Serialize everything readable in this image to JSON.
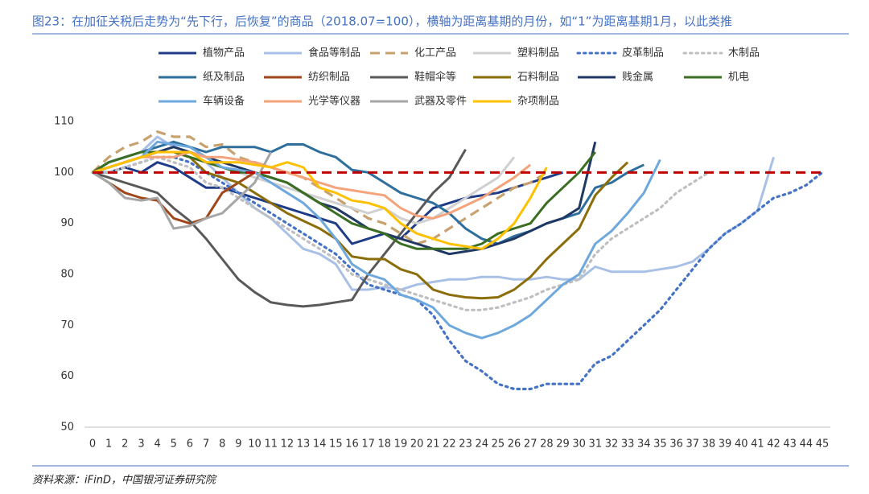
{
  "chart_data": {
    "type": "line",
    "title": "图23：在加征关税后走势为“先下行，后恢复”的商品（2018.07=100），横轴为距离基期的月份，如“1”为距离基期1月，以此类推",
    "source": "资料来源：iFinD，中国银河证券研究院",
    "x": [
      0,
      1,
      2,
      3,
      4,
      5,
      6,
      7,
      8,
      9,
      10,
      11,
      12,
      13,
      14,
      15,
      16,
      17,
      18,
      19,
      20,
      21,
      22,
      23,
      24,
      25,
      26,
      27,
      28,
      29,
      30,
      31,
      32,
      33,
      34,
      35,
      36,
      37,
      38,
      39,
      40,
      41,
      42,
      43,
      44,
      45
    ],
    "xlim": [
      0,
      45
    ],
    "xticks": [
      0,
      1,
      2,
      3,
      4,
      5,
      6,
      7,
      8,
      9,
      10,
      11,
      12,
      13,
      14,
      15,
      16,
      17,
      18,
      19,
      20,
      21,
      22,
      23,
      24,
      25,
      26,
      27,
      28,
      29,
      30,
      31,
      32,
      33,
      34,
      35,
      36,
      37,
      38,
      39,
      40,
      41,
      42,
      43,
      44,
      45
    ],
    "ylim": [
      50,
      110
    ],
    "yticks": [
      50,
      60,
      70,
      80,
      90,
      100,
      110
    ],
    "grid": false,
    "legend": "top",
    "reference_line": {
      "y": 100,
      "color": "#c00000"
    },
    "series": [
      {
        "name": "植物产品",
        "color": "#1f3c88",
        "dash": "solid",
        "values": [
          100,
          100,
          101,
          100,
          102,
          101,
          99,
          97,
          97,
          96,
          95,
          94,
          93,
          92,
          91,
          90,
          86,
          87,
          88,
          87,
          90,
          93,
          94,
          95,
          95.5,
          96,
          97,
          98,
          99,
          100,
          null,
          null,
          null,
          null,
          null,
          null,
          null,
          null,
          null,
          null,
          null,
          null,
          null,
          null,
          null,
          null
        ]
      },
      {
        "name": "食品等制品",
        "color": "#a9c0e6",
        "dash": "solid",
        "values": [
          100,
          102,
          103,
          104,
          107,
          105,
          104,
          102,
          99,
          96,
          93,
          91,
          88,
          85,
          84,
          82,
          77,
          77,
          77.5,
          77,
          78,
          78.5,
          79,
          79,
          79.5,
          79.5,
          79,
          79,
          79.5,
          79,
          79,
          81.5,
          80.5,
          80.5,
          80.5,
          81,
          81.5,
          82.5,
          85,
          88,
          90,
          92.5,
          103,
          null,
          null,
          null
        ]
      },
      {
        "name": "化工产品",
        "color": "#c8a26e",
        "dash": "dashed",
        "values": [
          100,
          103,
          105,
          106,
          108,
          107,
          107,
          105,
          105.5,
          103,
          102,
          101,
          100,
          99,
          97,
          95,
          93,
          91,
          90,
          88,
          86,
          87,
          89,
          91,
          93,
          95,
          97,
          98,
          100,
          null,
          null,
          null,
          null,
          null,
          null,
          null,
          null,
          null,
          null,
          null,
          null,
          null,
          null,
          null,
          null,
          null
        ]
      },
      {
        "name": "塑料制品",
        "color": "#d0d0d0",
        "dash": "solid",
        "values": [
          100,
          101,
          102,
          103,
          104,
          104,
          103,
          102,
          101,
          100,
          99,
          98,
          97,
          96,
          95,
          94,
          93,
          92,
          93,
          91,
          90,
          91,
          93,
          95,
          97,
          99,
          103,
          null,
          null,
          null,
          null,
          null,
          null,
          null,
          null,
          null,
          null,
          null,
          null,
          null,
          null,
          null,
          null,
          null,
          null,
          null
        ]
      },
      {
        "name": "皮革制品",
        "color": "#4472c4",
        "dash": "dotted",
        "values": [
          100,
          100,
          101,
          102,
          103,
          103,
          102,
          100,
          98,
          96,
          94,
          92,
          90,
          88,
          86,
          84,
          81,
          78,
          77,
          76,
          75,
          72,
          67,
          63,
          61,
          58.5,
          57.5,
          57.5,
          58.5,
          58.5,
          58.5,
          62.5,
          64,
          67,
          70,
          73,
          77,
          81,
          85,
          88,
          90,
          92.5,
          95,
          96,
          97.5,
          100
        ]
      },
      {
        "name": "木制品",
        "color": "#bfbfbf",
        "dash": "dotted",
        "values": [
          100,
          100,
          101,
          102,
          103,
          102,
          101,
          98,
          97,
          95,
          93,
          91,
          89,
          87,
          85,
          83,
          80,
          79,
          78,
          77,
          76,
          75,
          74,
          73,
          73,
          73.5,
          74.5,
          75.5,
          77,
          78,
          79,
          84,
          87,
          89,
          91,
          93,
          96,
          98,
          100,
          null,
          null,
          null,
          null,
          null,
          null,
          null
        ]
      },
      {
        "name": "纸及制品",
        "color": "#2e6f9e",
        "dash": "solid",
        "values": [
          100,
          102,
          103,
          104,
          105,
          106,
          105,
          104,
          105,
          105,
          105,
          104,
          105.5,
          105.5,
          104,
          103,
          100.5,
          100,
          98,
          96,
          95,
          94,
          92,
          89,
          87,
          86,
          87.5,
          88.5,
          90,
          91,
          92,
          97,
          98,
          100,
          101.5,
          null,
          null,
          null,
          null,
          null,
          null,
          null,
          null,
          null,
          null,
          null
        ]
      },
      {
        "name": "纺织制品",
        "color": "#a0461b",
        "dash": "solid",
        "values": [
          100,
          98,
          96,
          95,
          94.5,
          91,
          90,
          91,
          96,
          98,
          100,
          null,
          null,
          null,
          null,
          null,
          null,
          null,
          null,
          null,
          null,
          null,
          null,
          null,
          null,
          null,
          null,
          null,
          null,
          null,
          null,
          null,
          null,
          null,
          null,
          null,
          null,
          null,
          null,
          null,
          null,
          null,
          null,
          null,
          null,
          null
        ]
      },
      {
        "name": "鞋帽伞等",
        "color": "#595959",
        "dash": "solid",
        "values": [
          100,
          99,
          98,
          97,
          96,
          93,
          90.5,
          87,
          83,
          79,
          76.5,
          74.5,
          74,
          73.7,
          74,
          74.5,
          75,
          80,
          84,
          88,
          92,
          96,
          99,
          104.5,
          null,
          null,
          null,
          null,
          null,
          null,
          null,
          null,
          null,
          null,
          null,
          null,
          null,
          null,
          null,
          null,
          null,
          null,
          null,
          null,
          null,
          null
        ]
      },
      {
        "name": "石料制品",
        "color": "#8b6d0a",
        "dash": "solid",
        "values": [
          100,
          101,
          102,
          103,
          104,
          104,
          103,
          100,
          99,
          98,
          96,
          94,
          92,
          90.5,
          89,
          87,
          83.5,
          83,
          83,
          81,
          80,
          77,
          76,
          75.5,
          75.3,
          75.5,
          77,
          79.5,
          83,
          86,
          89,
          95.5,
          99,
          102,
          null,
          null,
          null,
          null,
          null,
          null,
          null,
          null,
          null,
          null,
          null,
          null
        ]
      },
      {
        "name": "贱金属",
        "color": "#1f3864",
        "dash": "solid",
        "values": [
          100,
          101,
          102,
          103,
          104,
          105,
          104,
          103,
          102,
          101,
          100,
          99,
          98,
          96,
          94,
          93,
          91,
          89,
          88,
          87,
          86,
          85,
          84,
          84.5,
          85,
          86,
          87,
          88.5,
          90,
          91,
          93,
          106,
          null,
          null,
          null,
          null,
          null,
          null,
          null,
          null,
          null,
          null,
          null,
          null,
          null,
          null
        ]
      },
      {
        "name": "机电",
        "color": "#3b6e22",
        "dash": "solid",
        "values": [
          100,
          102,
          103,
          104,
          104,
          104,
          103,
          102,
          101,
          100,
          100,
          99,
          98,
          96,
          94,
          92,
          90,
          89,
          88,
          86,
          85,
          85,
          85,
          85,
          86,
          88,
          89,
          90,
          94,
          97,
          100,
          104,
          null,
          null,
          null,
          null,
          null,
          null,
          null,
          null,
          null,
          null,
          null,
          null,
          null,
          null
        ]
      },
      {
        "name": "车辆设备",
        "color": "#6fa8dc",
        "dash": "solid",
        "values": [
          100,
          101,
          102,
          103,
          106,
          105.5,
          105,
          103,
          101,
          100.5,
          100,
          98,
          96,
          94,
          91,
          87,
          82,
          80,
          79,
          76,
          75,
          73.5,
          70,
          68.5,
          67.5,
          68.5,
          70,
          72,
          75,
          78,
          80,
          86,
          88.5,
          92,
          96,
          102.5,
          null,
          null,
          null,
          null,
          null,
          null,
          null,
          null,
          null,
          null
        ]
      },
      {
        "name": "光学等仪器",
        "color": "#f4a37a",
        "dash": "solid",
        "values": [
          100,
          101,
          102,
          103,
          103,
          103,
          104,
          103,
          103,
          102.5,
          102,
          101,
          100,
          99,
          98,
          97,
          96.5,
          96,
          95.5,
          93,
          91.5,
          91,
          92,
          93.5,
          95,
          97,
          99,
          101.5,
          null,
          null,
          null,
          null,
          null,
          null,
          null,
          null,
          null,
          null,
          null,
          null,
          null,
          null,
          null,
          null,
          null,
          null
        ]
      },
      {
        "name": "武器及零件",
        "color": "#a6a6a6",
        "dash": "solid",
        "values": [
          100,
          98,
          95,
          94.5,
          95,
          89,
          89.5,
          91,
          92,
          95,
          98,
          104,
          null,
          null,
          null,
          null,
          null,
          null,
          null,
          null,
          null,
          null,
          null,
          null,
          null,
          null,
          null,
          null,
          null,
          null,
          null,
          null,
          null,
          null,
          null,
          null,
          null,
          null,
          null,
          null,
          null,
          null,
          null,
          null,
          null,
          null
        ]
      },
      {
        "name": "杂项制品",
        "color": "#ffc000",
        "dash": "solid",
        "values": [
          100,
          101,
          102,
          103,
          104,
          104,
          104,
          102,
          102,
          102,
          101.5,
          101,
          102,
          101,
          97,
          96,
          94.5,
          94,
          93,
          90,
          88,
          87,
          86,
          85.5,
          85,
          87,
          90,
          95,
          101,
          null,
          null,
          null,
          null,
          null,
          null,
          null,
          null,
          null,
          null,
          null,
          null,
          null,
          null,
          null,
          null,
          null
        ]
      }
    ]
  }
}
